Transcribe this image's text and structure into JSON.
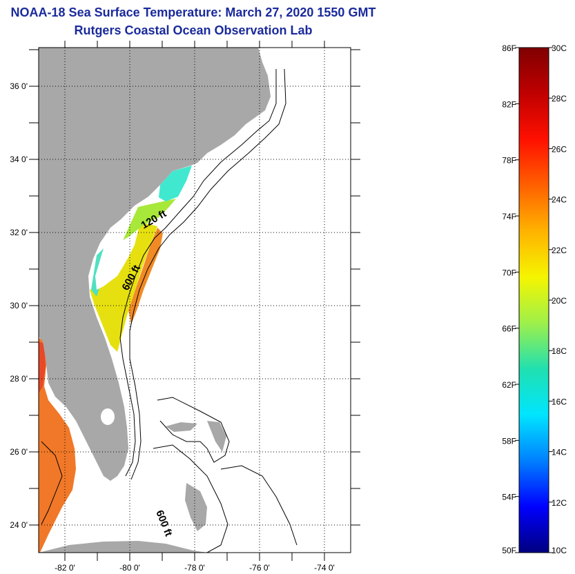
{
  "title": "NOAA-18 Sea Surface Temperature:  March 27, 2020 1550 GMT",
  "subtitle": "Rutgers Coastal Ocean Observation Lab",
  "map": {
    "lat_labels": [
      "36 0'",
      "34 0'",
      "32 0'",
      "30 0'",
      "28 0'",
      "26 0'",
      "24 0'"
    ],
    "lon_labels": [
      "-82 0'",
      "-80 0'",
      "-78 0'",
      "-76 0'",
      "-74 0'"
    ],
    "contour_labels": [
      "120 ft",
      "600 ft",
      "600 ft"
    ],
    "colors": {
      "land": "#a8a8a8",
      "ocean": "#ffffff"
    }
  },
  "colorbar": {
    "f_labels": [
      "86F",
      "82F",
      "78F",
      "74F",
      "70F",
      "66F",
      "62F",
      "58F",
      "54F",
      "50F"
    ],
    "c_labels": [
      "30C",
      "28C",
      "26C",
      "24C",
      "22C",
      "20C",
      "18C",
      "16C",
      "14C",
      "12C",
      "10C"
    ],
    "gradient": [
      "#000080",
      "#0000ff",
      "#0080ff",
      "#00e5ff",
      "#20e0b0",
      "#9ef04a",
      "#f5f500",
      "#ffb300",
      "#ff6000",
      "#ff1000",
      "#c00000",
      "#800000"
    ]
  }
}
